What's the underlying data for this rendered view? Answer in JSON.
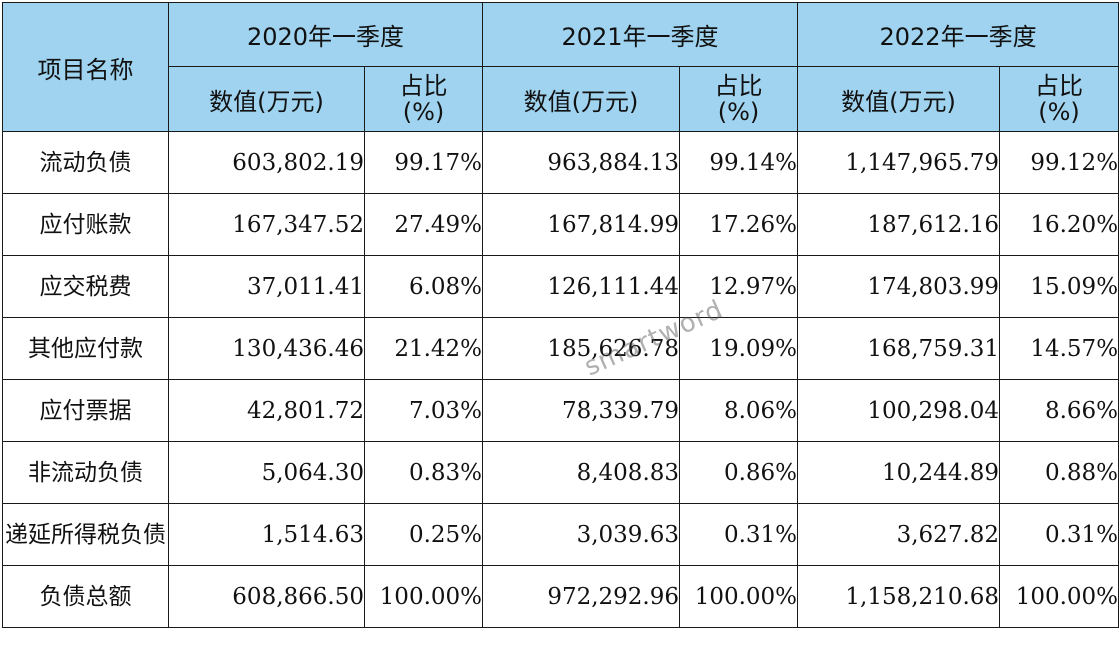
{
  "header": {
    "item_name": "项目名称",
    "periods": [
      "2020年一季度",
      "2021年一季度",
      "2022年一季度"
    ],
    "value_label": "数值(万元)",
    "pct_label_line1": "占比",
    "pct_label_line2": "(%)"
  },
  "rows": [
    {
      "name": "流动负债",
      "cells": [
        "603,802.19",
        "99.17%",
        "963,884.13",
        "99.14%",
        "1,147,965.79",
        "99.12%"
      ]
    },
    {
      "name": "应付账款",
      "cells": [
        "167,347.52",
        "27.49%",
        "167,814.99",
        "17.26%",
        "187,612.16",
        "16.20%"
      ]
    },
    {
      "name": "应交税费",
      "cells": [
        "37,011.41",
        "6.08%",
        "126,111.44",
        "12.97%",
        "174,803.99",
        "15.09%"
      ]
    },
    {
      "name": "其他应付款",
      "cells": [
        "130,436.46",
        "21.42%",
        "185,626.78",
        "19.09%",
        "168,759.31",
        "14.57%"
      ]
    },
    {
      "name": "应付票据",
      "cells": [
        "42,801.72",
        "7.03%",
        "78,339.79",
        "8.06%",
        "100,298.04",
        "8.66%"
      ]
    },
    {
      "name": "非流动负债",
      "cells": [
        "5,064.30",
        "0.83%",
        "8,408.83",
        "0.86%",
        "10,244.89",
        "0.88%"
      ]
    },
    {
      "name": "递延所得税负债",
      "cells": [
        "1,514.63",
        "0.25%",
        "3,039.63",
        "0.31%",
        "3,627.82",
        "0.31%"
      ]
    },
    {
      "name": "负债总额",
      "cells": [
        "608,866.50",
        "100.00%",
        "972,292.96",
        "100.00%",
        "1,158,210.68",
        "100.00%"
      ]
    }
  ],
  "watermark": "smartword",
  "colors": {
    "header_bg": "#9fd3ef",
    "border": "#1a1a1a",
    "text": "#111111"
  }
}
